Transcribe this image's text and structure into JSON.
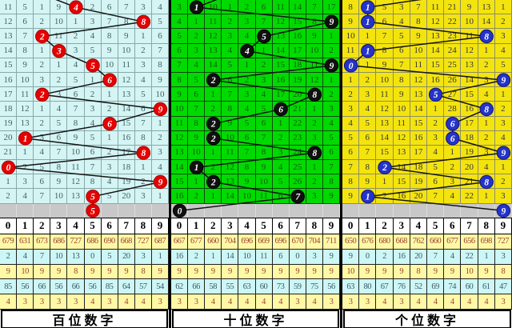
{
  "chart_data": {
    "type": "table",
    "digits": [
      "0",
      "1",
      "2",
      "3",
      "4",
      "5",
      "6",
      "7",
      "8",
      "9"
    ],
    "colors": {
      "separator": "#000000",
      "trend_line": "#141414",
      "gray_row_bg": "#c8c8c8",
      "header_bg": "#ffffff",
      "header_text": "#000000",
      "stat_yellow_bg": "#fff9a6",
      "stat_yellow_text": "#9a4433",
      "stat_blue_bg": "#cdf6f6",
      "stat_blue_text": "#3c5a66",
      "label_bg": "#ffffff",
      "label_text": "#000000"
    },
    "stat_row_styles": [
      "yellow",
      "blue",
      "yellow",
      "blue",
      "yellow"
    ],
    "panels": [
      {
        "name": "百位数字",
        "colors": {
          "bg": "#d5f4f4",
          "grid": "#86a9a9",
          "text": "#3e6363",
          "circle_fill": "#e60000",
          "circle_edge": "#a80000"
        },
        "rows": [
          [
            11,
            5,
            1,
            9,
            4,
            2,
            6,
            7,
            3,
            4
          ],
          [
            12,
            6,
            2,
            10,
            1,
            3,
            7,
            8,
            8,
            5
          ],
          [
            13,
            7,
            2,
            11,
            2,
            4,
            8,
            9,
            1,
            6
          ],
          [
            14,
            8,
            1,
            3,
            3,
            5,
            9,
            10,
            2,
            7
          ],
          [
            15,
            9,
            2,
            1,
            4,
            5,
            10,
            11,
            3,
            8
          ],
          [
            16,
            10,
            3,
            2,
            5,
            1,
            6,
            12,
            4,
            9
          ],
          [
            17,
            11,
            2,
            3,
            6,
            2,
            1,
            13,
            5,
            10
          ],
          [
            18,
            12,
            1,
            4,
            7,
            3,
            2,
            14,
            6,
            9
          ],
          [
            19,
            13,
            2,
            5,
            8,
            4,
            6,
            15,
            7,
            1
          ],
          [
            20,
            1,
            3,
            6,
            9,
            5,
            1,
            16,
            8,
            2
          ],
          [
            21,
            1,
            4,
            7,
            10,
            6,
            2,
            17,
            8,
            3
          ],
          [
            0,
            2,
            5,
            8,
            11,
            7,
            3,
            18,
            1,
            4
          ],
          [
            1,
            3,
            6,
            9,
            12,
            8,
            4,
            19,
            2,
            9
          ],
          [
            2,
            4,
            7,
            10,
            13,
            5,
            5,
            20,
            3,
            1
          ]
        ],
        "draws": [
          4,
          8,
          2,
          3,
          5,
          6,
          2,
          9,
          6,
          1,
          8,
          0,
          9,
          5
        ],
        "latest_draw": 5,
        "stub_dx": -42,
        "stats": [
          [
            679,
            631,
            673,
            686,
            727,
            686,
            690,
            668,
            727,
            687
          ],
          [
            2,
            4,
            7,
            10,
            13,
            0,
            5,
            20,
            3,
            1
          ],
          [
            9,
            10,
            9,
            9,
            8,
            9,
            9,
            9,
            8,
            9
          ],
          [
            85,
            56,
            66,
            56,
            66,
            56,
            85,
            64,
            57,
            54
          ],
          [
            4,
            3,
            3,
            3,
            3,
            4,
            3,
            4,
            4,
            3
          ]
        ]
      },
      {
        "name": "十位数字",
        "colors": {
          "bg": "#00da00",
          "grid": "#0c4a0c",
          "text": "#0e5c0e",
          "circle_fill": "#101010",
          "circle_edge": "#000000"
        },
        "rows": [
          [
            3,
            1,
            10,
            1,
            2,
            6,
            11,
            14,
            7,
            17
          ],
          [
            4,
            1,
            11,
            2,
            3,
            7,
            12,
            15,
            8,
            9
          ],
          [
            5,
            2,
            12,
            3,
            4,
            5,
            13,
            16,
            9,
            1
          ],
          [
            6,
            3,
            13,
            4,
            4,
            1,
            14,
            17,
            10,
            2
          ],
          [
            7,
            4,
            14,
            5,
            1,
            2,
            15,
            18,
            11,
            9
          ],
          [
            8,
            5,
            2,
            6,
            2,
            3,
            16,
            19,
            12,
            1
          ],
          [
            9,
            6,
            1,
            7,
            3,
            4,
            17,
            20,
            8,
            2
          ],
          [
            10,
            7,
            2,
            8,
            4,
            5,
            6,
            21,
            1,
            3
          ],
          [
            11,
            8,
            2,
            9,
            5,
            6,
            1,
            22,
            2,
            4
          ],
          [
            12,
            9,
            2,
            10,
            6,
            7,
            2,
            23,
            3,
            5
          ],
          [
            13,
            10,
            1,
            11,
            7,
            8,
            3,
            24,
            8,
            6
          ],
          [
            14,
            1,
            2,
            12,
            8,
            9,
            4,
            25,
            1,
            7
          ],
          [
            15,
            1,
            2,
            13,
            9,
            10,
            5,
            26,
            2,
            8
          ],
          [
            16,
            2,
            1,
            14,
            10,
            11,
            6,
            7,
            3,
            9
          ]
        ],
        "draws": [
          1,
          9,
          5,
          4,
          9,
          2,
          8,
          6,
          2,
          2,
          8,
          1,
          2,
          7
        ],
        "latest_draw": 0,
        "stub_dx": 42,
        "stats": [
          [
            667,
            677,
            660,
            704,
            696,
            669,
            696,
            670,
            704,
            711
          ],
          [
            16,
            2,
            1,
            14,
            10,
            11,
            6,
            0,
            3,
            9
          ],
          [
            9,
            9,
            9,
            9,
            9,
            9,
            9,
            9,
            9,
            9
          ],
          [
            62,
            66,
            58,
            55,
            63,
            60,
            73,
            59,
            75,
            56
          ],
          [
            3,
            3,
            4,
            4,
            4,
            4,
            4,
            3,
            4,
            3
          ]
        ]
      },
      {
        "name": "个位数字",
        "colors": {
          "bg": "#f4e40e",
          "grid": "#8d8d63",
          "text": "#33343c",
          "circle_fill": "#2433cb",
          "circle_edge": "#101372"
        },
        "rows": [
          [
            8,
            1,
            5,
            3,
            7,
            11,
            21,
            9,
            13,
            1
          ],
          [
            9,
            1,
            6,
            4,
            8,
            12,
            22,
            10,
            14,
            2
          ],
          [
            10,
            1,
            7,
            5,
            9,
            13,
            23,
            11,
            8,
            3
          ],
          [
            11,
            1,
            8,
            6,
            10,
            14,
            24,
            12,
            1,
            4
          ],
          [
            0,
            1,
            9,
            7,
            11,
            15,
            25,
            13,
            2,
            5
          ],
          [
            1,
            2,
            10,
            8,
            12,
            16,
            26,
            14,
            3,
            9
          ],
          [
            2,
            3,
            11,
            9,
            13,
            5,
            27,
            15,
            4,
            1
          ],
          [
            3,
            4,
            12,
            10,
            14,
            1,
            28,
            16,
            8,
            2
          ],
          [
            4,
            5,
            13,
            11,
            15,
            2,
            6,
            17,
            1,
            3
          ],
          [
            5,
            6,
            14,
            12,
            16,
            3,
            6,
            18,
            2,
            4
          ],
          [
            6,
            7,
            15,
            13,
            17,
            4,
            1,
            19,
            3,
            9
          ],
          [
            7,
            8,
            2,
            14,
            18,
            5,
            2,
            20,
            4,
            1
          ],
          [
            8,
            9,
            1,
            15,
            19,
            6,
            3,
            21,
            8,
            2
          ],
          [
            9,
            1,
            2,
            16,
            20,
            7,
            4,
            22,
            1,
            3
          ]
        ],
        "draws": [
          1,
          1,
          8,
          1,
          0,
          9,
          5,
          8,
          6,
          6,
          9,
          2,
          8,
          1
        ],
        "latest_draw": 9,
        "stub_dx": 110,
        "stats": [
          [
            650,
            676,
            680,
            668,
            762,
            660,
            677,
            656,
            698,
            727
          ],
          [
            9,
            0,
            2,
            16,
            20,
            7,
            4,
            22,
            1,
            3
          ],
          [
            10,
            9,
            9,
            9,
            8,
            9,
            9,
            10,
            9,
            8
          ],
          [
            63,
            80,
            67,
            76,
            52,
            69,
            74,
            60,
            61,
            47
          ],
          [
            3,
            3,
            4,
            3,
            4,
            4,
            4,
            4,
            4,
            3
          ]
        ]
      }
    ]
  }
}
